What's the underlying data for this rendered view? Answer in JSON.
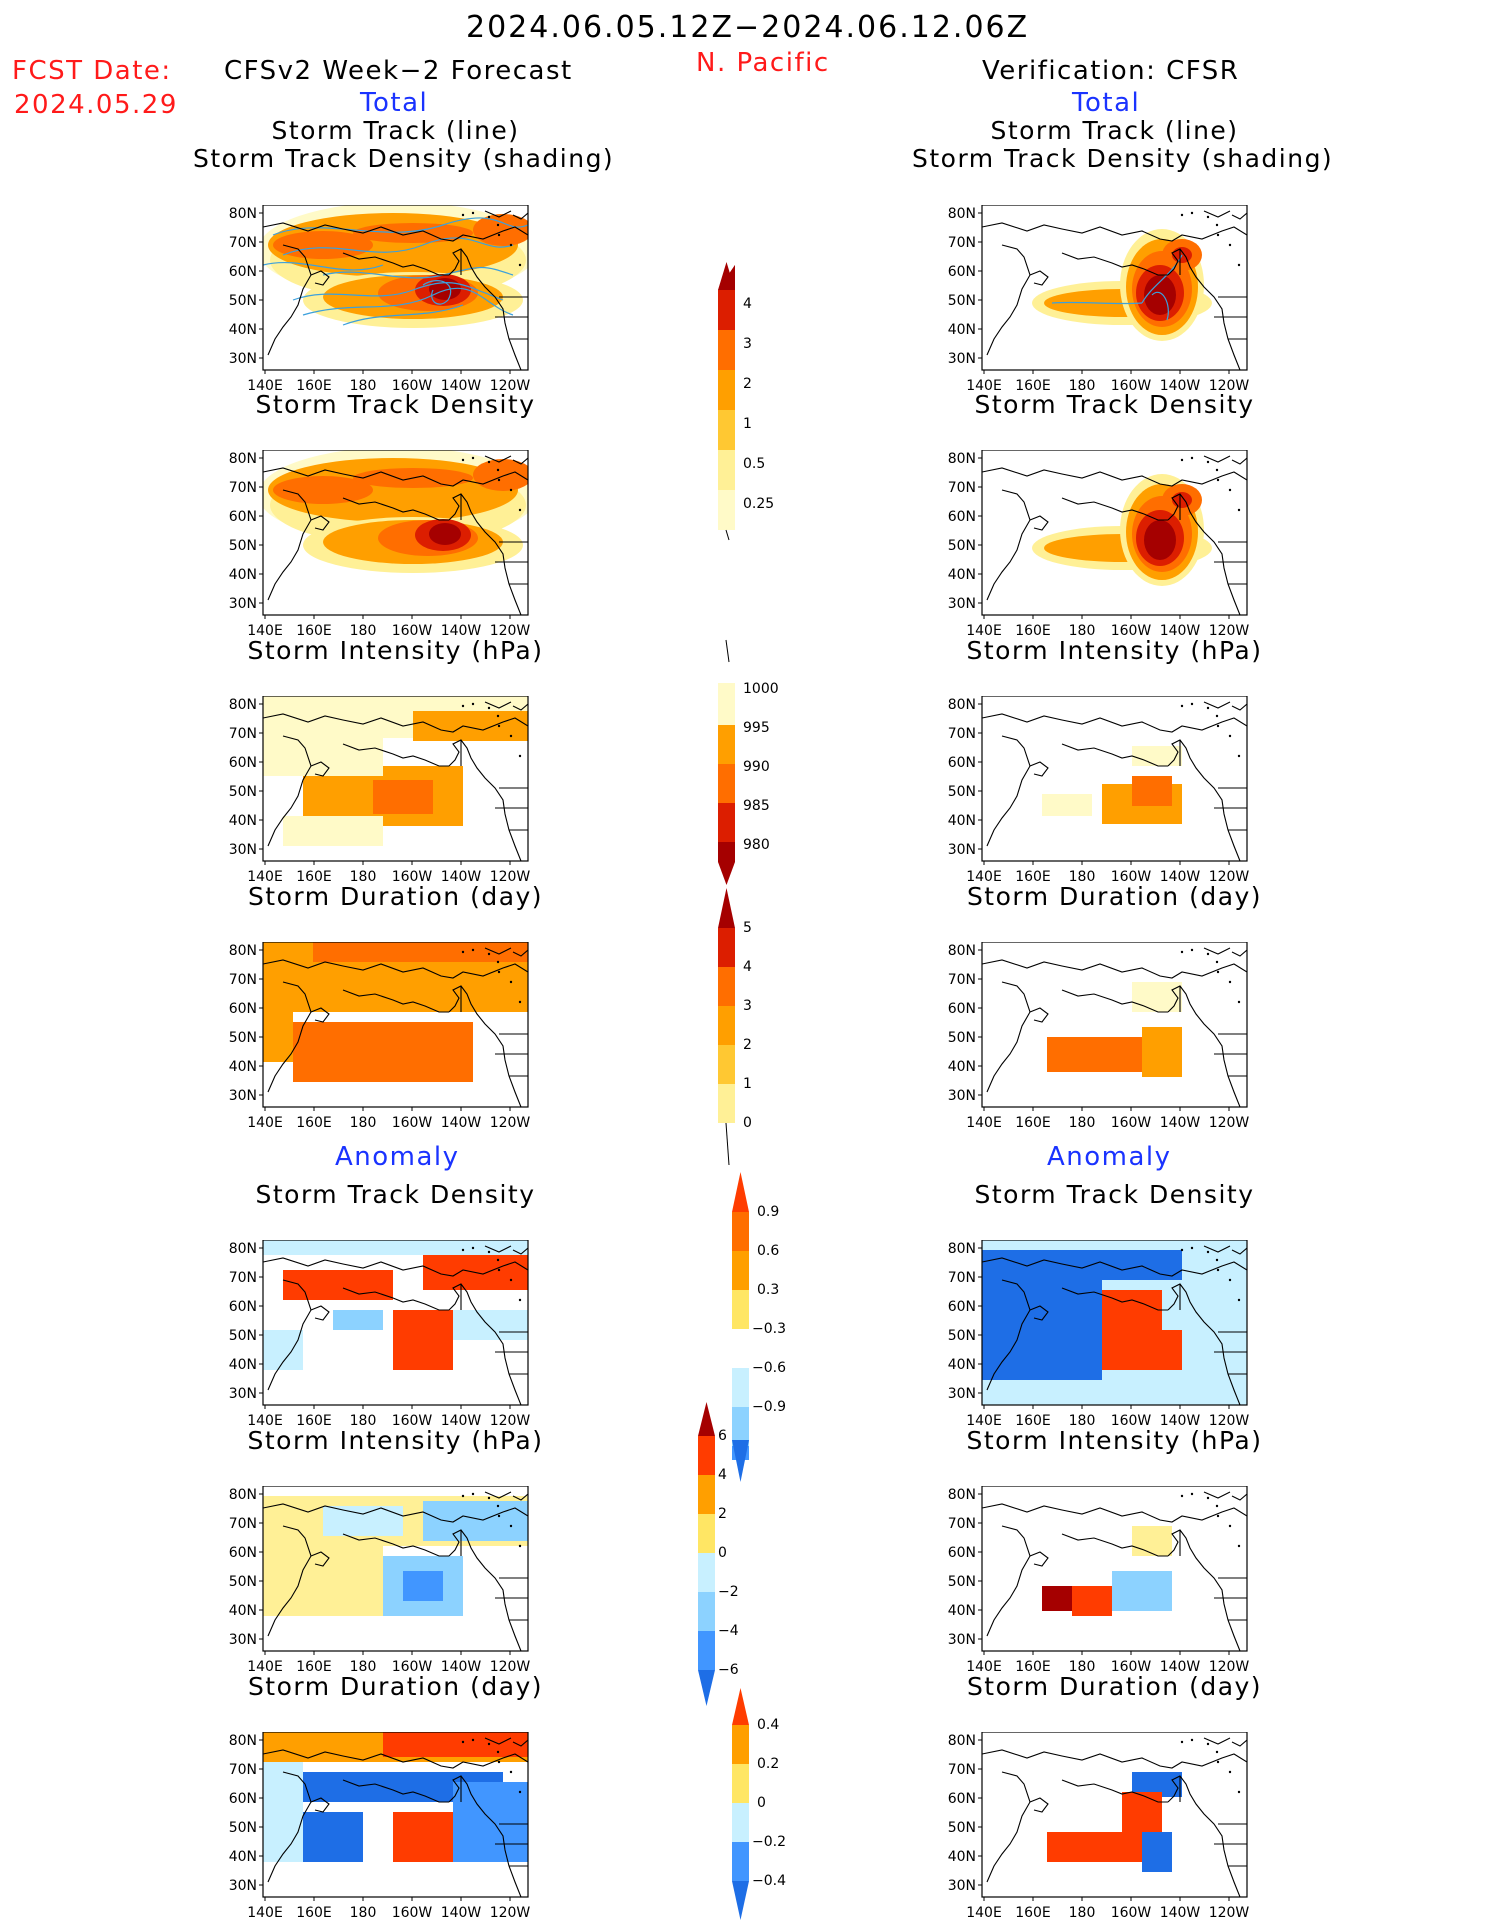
{
  "header": {
    "period": "2024.06.05.12Z−2024.06.12.06Z",
    "fcst_label": "FCST Date:",
    "fcst_date": "2024.05.29",
    "left_title": "CFSv2 Week−2 Forecast",
    "region": "N. Pacific",
    "right_title": "Verification: CFSR",
    "total_label": "Total",
    "anomaly_label": "Anomaly"
  },
  "panel_titles": {
    "track_line": "Storm Track (line)",
    "track_density_shading": "Storm Track Density (shading)",
    "track_density": "Storm Track Density",
    "intensity": "Storm Intensity (hPa)",
    "duration": "Storm Duration (day)"
  },
  "axes": {
    "x_ticks": [
      "140E",
      "160E",
      "180",
      "160W",
      "140W",
      "120W"
    ],
    "y_ticks": [
      "80N",
      "70N",
      "60N",
      "50N",
      "40N",
      "30N"
    ]
  },
  "colorbars": {
    "density_total": [
      "4",
      "3",
      "2",
      "1",
      "0.5",
      "0.25"
    ],
    "intensity_total": [
      "1000",
      "995",
      "990",
      "985",
      "980"
    ],
    "duration_total": [
      "5",
      "4",
      "3",
      "2",
      "1",
      "0"
    ],
    "density_anom": [
      "0.9",
      "0.6",
      "0.3",
      "−0.3",
      "−0.6",
      "−0.9"
    ],
    "intensity_anom": [
      "6",
      "4",
      "2",
      "0",
      "−2",
      "−4",
      "−6"
    ],
    "duration_anom": [
      "0.4",
      "0.2",
      "0",
      "−0.2",
      "−0.4"
    ]
  },
  "colors": {
    "dark_red": "#a50000",
    "red": "#dc1e00",
    "red_orange": "#ff3c00",
    "orange": "#ff6e00",
    "orange_light": "#ff9f00",
    "yellow_orange": "#ffc832",
    "light_yellow": "#fff096",
    "pale_yellow": "#fffac8",
    "light_cyan": "#c8f0ff",
    "light_blue": "#8cd2ff",
    "mid_blue": "#4196ff",
    "blue": "#1e6ee6",
    "dark_blue": "#0a46c8",
    "track_line": "#3ca0dc"
  }
}
